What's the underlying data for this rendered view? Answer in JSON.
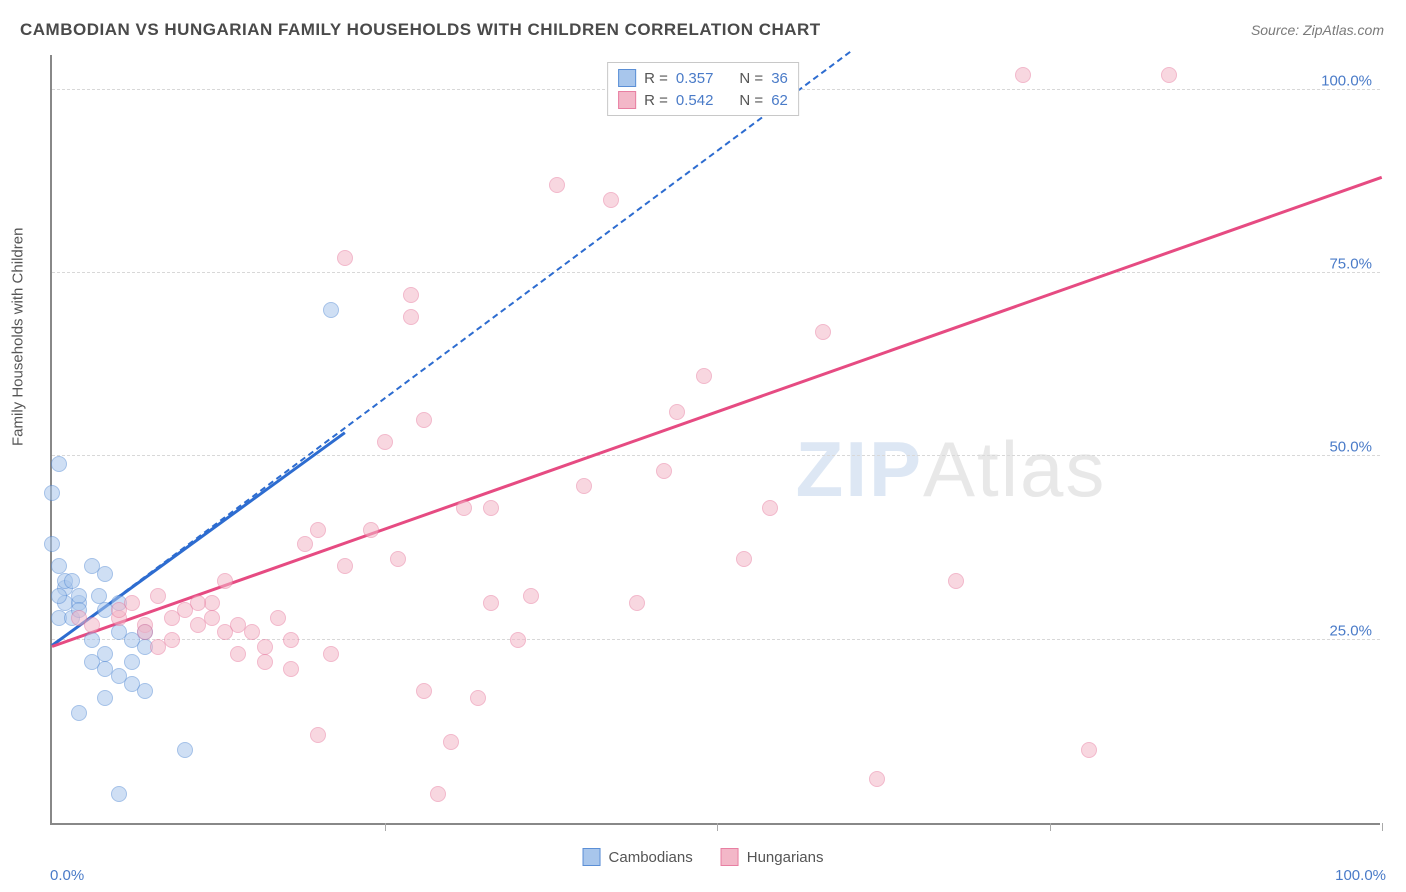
{
  "title": "CAMBODIAN VS HUNGARIAN FAMILY HOUSEHOLDS WITH CHILDREN CORRELATION CHART",
  "source_label": "Source: ZipAtlas.com",
  "y_axis_label": "Family Households with Children",
  "watermark": {
    "part1": "ZIP",
    "part2": "Atlas"
  },
  "chart": {
    "type": "scatter",
    "background_color": "#ffffff",
    "grid_color": "#d8d8d8",
    "axis_color": "#888888",
    "x_min": 0,
    "x_max": 100,
    "y_min": 0,
    "y_max": 105,
    "x_ticks": [
      0,
      25,
      50,
      75,
      100
    ],
    "y_ticks": [
      25,
      50,
      75,
      100
    ],
    "x_tick_labels": [
      "0.0%",
      "",
      "",
      "",
      "100.0%"
    ],
    "y_tick_labels": [
      "25.0%",
      "50.0%",
      "75.0%",
      "100.0%"
    ],
    "point_radius": 8,
    "point_opacity": 0.55
  },
  "series": [
    {
      "name": "Cambodians",
      "fill_color": "#a8c6ec",
      "stroke_color": "#5b8fd6",
      "trend_color": "#2d6cd0",
      "trend_dashed": true,
      "trend_x1": 0,
      "trend_y1": 24,
      "trend_x2": 60,
      "trend_y2": 105,
      "solid_trend_x1": 0,
      "solid_trend_y1": 24,
      "solid_trend_x2": 22,
      "solid_trend_y2": 53,
      "R_label": "R =",
      "R_value": "0.357",
      "N_label": "N =",
      "N_value": "36",
      "points": [
        [
          0,
          45
        ],
        [
          1,
          32
        ],
        [
          1,
          30
        ],
        [
          2,
          30
        ],
        [
          0.5,
          28
        ],
        [
          1.5,
          28
        ],
        [
          2,
          31
        ],
        [
          0.5,
          49
        ],
        [
          1,
          33
        ],
        [
          0.5,
          35
        ],
        [
          0,
          38
        ],
        [
          3,
          25
        ],
        [
          3,
          22
        ],
        [
          4,
          23
        ],
        [
          4,
          21
        ],
        [
          5,
          20
        ],
        [
          5,
          26
        ],
        [
          4,
          29
        ],
        [
          6,
          22
        ],
        [
          7,
          18
        ],
        [
          6,
          25
        ],
        [
          7,
          26
        ],
        [
          7,
          24
        ],
        [
          3.5,
          31
        ],
        [
          2,
          15
        ],
        [
          5,
          30
        ],
        [
          4,
          17
        ],
        [
          6,
          19
        ],
        [
          5,
          4
        ],
        [
          10,
          10
        ],
        [
          21,
          70
        ],
        [
          3,
          35
        ],
        [
          4,
          34
        ],
        [
          2,
          29
        ],
        [
          1.5,
          33
        ],
        [
          0.5,
          31
        ]
      ]
    },
    {
      "name": "Hungarians",
      "fill_color": "#f3b7c8",
      "stroke_color": "#e87fa2",
      "trend_color": "#e64b82",
      "trend_dashed": false,
      "trend_x1": 0,
      "trend_y1": 24,
      "trend_x2": 100,
      "trend_y2": 88,
      "R_label": "R =",
      "R_value": "0.542",
      "N_label": "N =",
      "N_value": "62",
      "points": [
        [
          2,
          28
        ],
        [
          3,
          27
        ],
        [
          5,
          28
        ],
        [
          5,
          29
        ],
        [
          6,
          30
        ],
        [
          7,
          27
        ],
        [
          7,
          26
        ],
        [
          8,
          24
        ],
        [
          8,
          31
        ],
        [
          9,
          28
        ],
        [
          10,
          29
        ],
        [
          11,
          27
        ],
        [
          12,
          28
        ],
        [
          12,
          30
        ],
        [
          13,
          26
        ],
        [
          14,
          23
        ],
        [
          14,
          27
        ],
        [
          15,
          26
        ],
        [
          16,
          22
        ],
        [
          16,
          24
        ],
        [
          18,
          25
        ],
        [
          18,
          21
        ],
        [
          19,
          38
        ],
        [
          20,
          12
        ],
        [
          20,
          40
        ],
        [
          21,
          23
        ],
        [
          22,
          35
        ],
        [
          22,
          77
        ],
        [
          24,
          40
        ],
        [
          25,
          52
        ],
        [
          26,
          36
        ],
        [
          27,
          72
        ],
        [
          27,
          69
        ],
        [
          28,
          55
        ],
        [
          28,
          18
        ],
        [
          29,
          4
        ],
        [
          30,
          11
        ],
        [
          31,
          43
        ],
        [
          32,
          17
        ],
        [
          33,
          30
        ],
        [
          33,
          43
        ],
        [
          35,
          25
        ],
        [
          36,
          31
        ],
        [
          38,
          87
        ],
        [
          40,
          46
        ],
        [
          42,
          85
        ],
        [
          44,
          30
        ],
        [
          46,
          48
        ],
        [
          47,
          56
        ],
        [
          49,
          61
        ],
        [
          52,
          36
        ],
        [
          54,
          43
        ],
        [
          58,
          67
        ],
        [
          62,
          6
        ],
        [
          68,
          33
        ],
        [
          73,
          102
        ],
        [
          84,
          102
        ],
        [
          9,
          25
        ],
        [
          11,
          30
        ],
        [
          13,
          33
        ],
        [
          17,
          28
        ],
        [
          78,
          10
        ]
      ]
    }
  ],
  "legend": {
    "series1_label": "Cambodians",
    "series2_label": "Hungarians"
  }
}
